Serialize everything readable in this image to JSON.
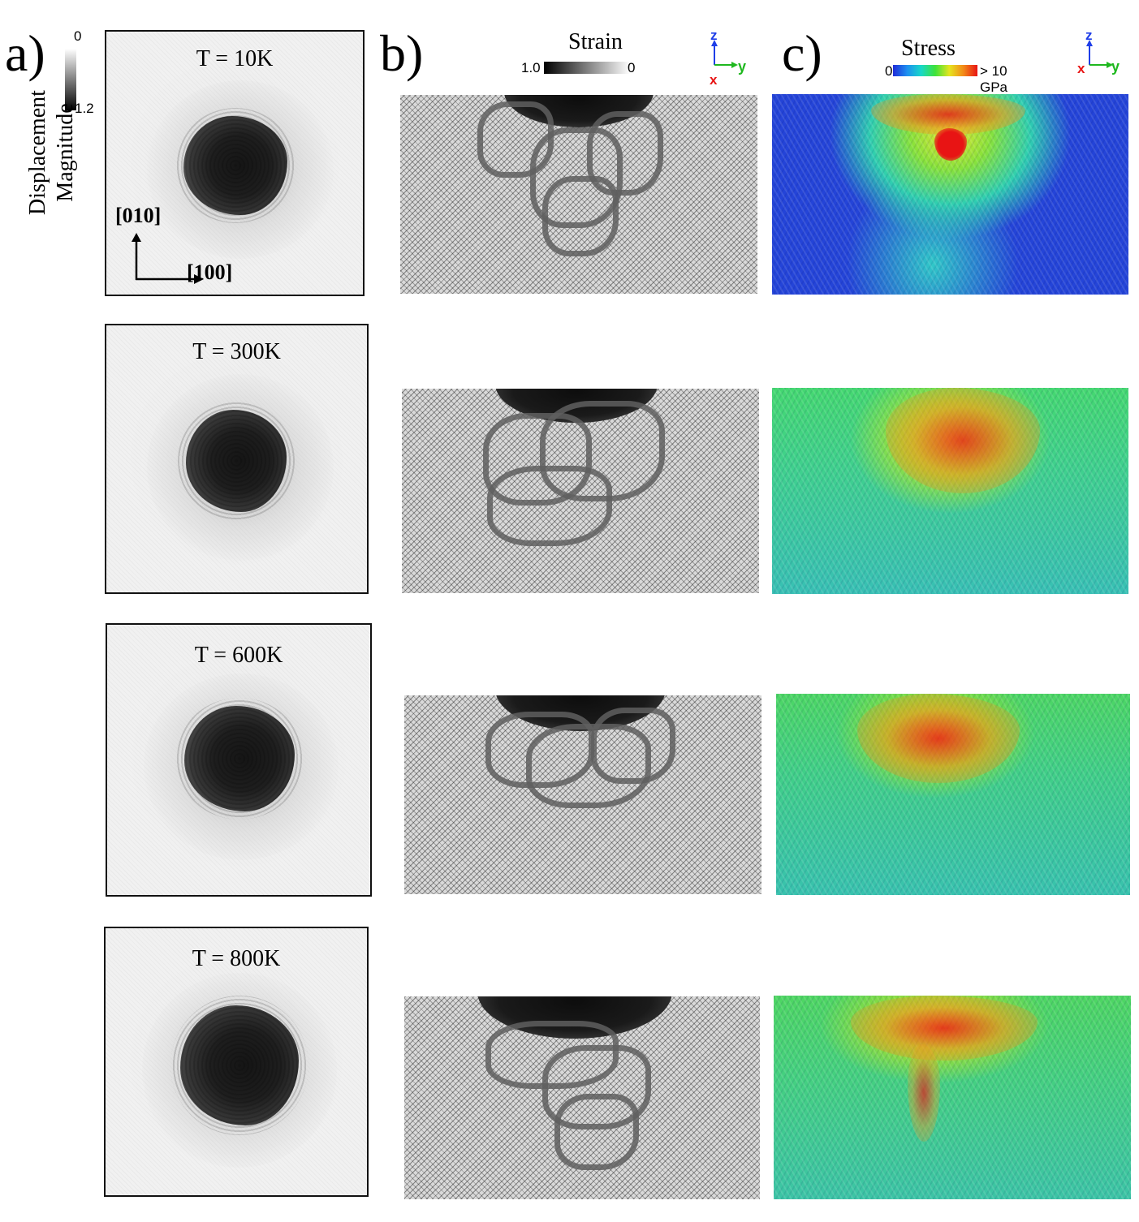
{
  "panel_a": {
    "letter": "a)",
    "colorbar_label_line1": "Displacement",
    "colorbar_label_line2": "Magnitude",
    "colorbar_min": "0",
    "colorbar_max": "1.2",
    "axis_vertical": "[010]",
    "axis_horizontal": "[100]",
    "temperatures": [
      "T = 10K",
      "T = 300K",
      "T = 600K",
      "T = 800K"
    ]
  },
  "panel_b": {
    "letter": "b)",
    "colorbar_title": "Strain",
    "colorbar_left": "1.0",
    "colorbar_right": "0",
    "triad": {
      "z": "z",
      "y": "y",
      "x": "x"
    }
  },
  "panel_c": {
    "letter": "c)",
    "colorbar_title": "Stress",
    "colorbar_left": "0",
    "colorbar_right": "> 10 GPa",
    "triad": {
      "z": "z",
      "y": "y",
      "x": "x"
    }
  },
  "colors": {
    "axis_z": "#1f3ee8",
    "axis_y": "#1fb81f",
    "axis_x": "#e81414",
    "stress_low": "#1f2bd8",
    "stress_mid": "#3ee23a",
    "stress_high": "#e81414"
  }
}
